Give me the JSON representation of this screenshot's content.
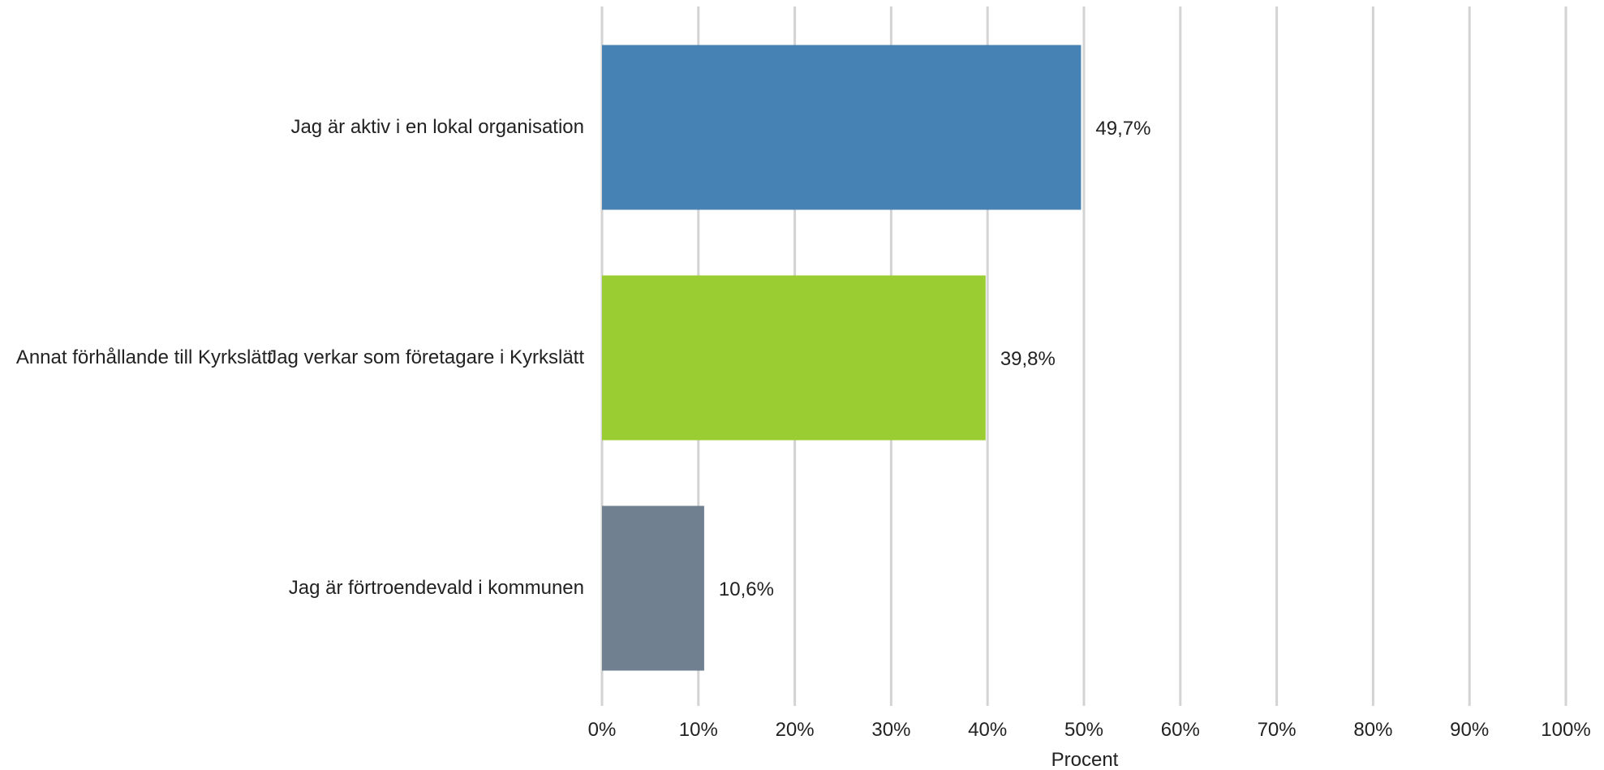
{
  "chart_data": {
    "type": "bar",
    "orientation": "horizontal",
    "title": "",
    "group_label": "Annat förhållande till Kyrkslätt",
    "categories": [
      "Jag är aktiv i en lokal organisation",
      "Jag verkar som företagare i Kyrkslätt",
      "Jag är förtroendevald i kommunen"
    ],
    "values": [
      49.7,
      39.8,
      10.6
    ],
    "value_labels": [
      "49,7%",
      "39,8%",
      "10,6%"
    ],
    "colors": [
      "#4682b4",
      "#9acd32",
      "#708090"
    ],
    "xlabel": "Procent",
    "ylabel": "",
    "xlim": [
      0,
      100
    ],
    "x_ticks": [
      "0%",
      "10%",
      "20%",
      "30%",
      "40%",
      "50%",
      "60%",
      "70%",
      "80%",
      "90%",
      "100%"
    ],
    "grid": true,
    "grid_color": "#d3d3d3",
    "legend": "none"
  }
}
